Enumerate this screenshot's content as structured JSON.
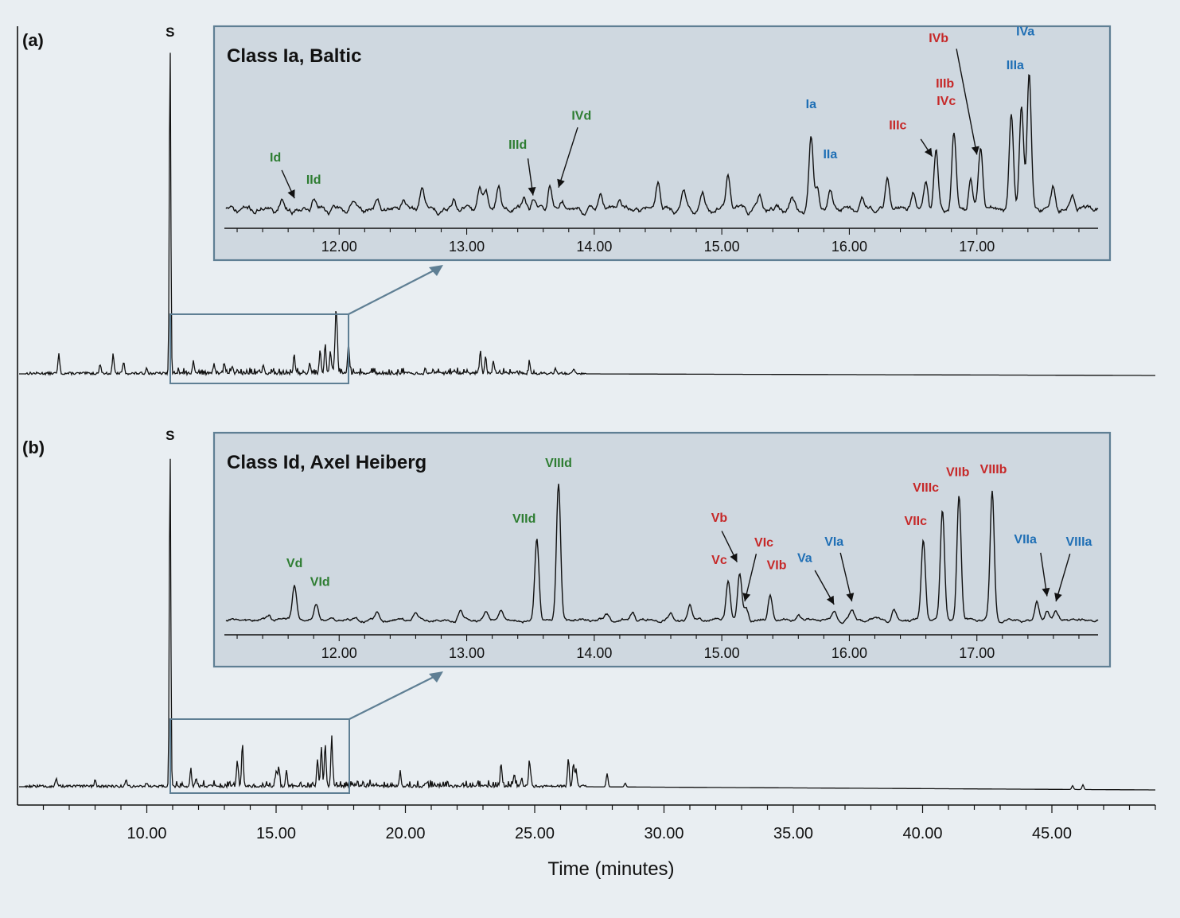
{
  "chart_data": {
    "type": "line",
    "xlabel": "Time (minutes)",
    "xlim": [
      5.0,
      49.0
    ],
    "xticks": [
      "10.00",
      "15.00",
      "20.00",
      "25.00",
      "30.00",
      "35.00",
      "40.00",
      "45.00"
    ],
    "inset_xlim": [
      11.1,
      17.95
    ],
    "inset_xticks": [
      "12.00",
      "13.00",
      "14.00",
      "15.00",
      "16.00",
      "17.00"
    ],
    "colors": {
      "green": "#2e7d32",
      "red": "#c62828",
      "blue": "#1f6fb5",
      "trace": "#111111",
      "inset_bg": "#cfd8e0",
      "inset_border": "#5f7f94"
    },
    "panels": [
      {
        "letter": "(a)",
        "s_label": "S",
        "s_time": 10.9,
        "zoom_range": [
          11.1,
          18.1
        ],
        "inset_title": "Class Ia, Baltic",
        "main_peaks": [
          [
            6.6,
            0.1
          ],
          [
            8.2,
            0.05
          ],
          [
            8.7,
            0.1
          ],
          [
            9.1,
            0.06
          ],
          [
            10.0,
            0.03
          ],
          [
            11.8,
            0.06
          ],
          [
            12.6,
            0.05
          ],
          [
            13.0,
            0.05
          ],
          [
            13.3,
            0.04
          ],
          [
            14.5,
            0.04
          ],
          [
            15.7,
            0.1
          ],
          [
            16.3,
            0.06
          ],
          [
            16.7,
            0.12
          ],
          [
            16.9,
            0.15
          ],
          [
            17.1,
            0.12
          ],
          [
            17.3,
            0.2
          ],
          [
            17.35,
            0.22
          ],
          [
            17.8,
            0.16
          ],
          [
            22.9,
            0.12
          ],
          [
            23.1,
            0.09
          ],
          [
            23.4,
            0.06
          ],
          [
            24.8,
            0.06
          ],
          [
            25.8,
            0.03
          ],
          [
            26.5,
            0.025
          ]
        ],
        "inset_peaks": [
          {
            "t": 11.55,
            "h": 0.09
          },
          {
            "t": 11.8,
            "h": 0.1
          },
          {
            "t": 12.1,
            "h": 0.07
          },
          {
            "t": 12.3,
            "h": 0.08
          },
          {
            "t": 12.5,
            "h": 0.12
          },
          {
            "t": 12.65,
            "h": 0.26
          },
          {
            "t": 12.9,
            "h": 0.12
          },
          {
            "t": 13.1,
            "h": 0.22
          },
          {
            "t": 13.15,
            "h": 0.2
          },
          {
            "t": 13.25,
            "h": 0.25
          },
          {
            "t": 13.45,
            "h": 0.1
          },
          {
            "t": 13.52,
            "h": 0.09
          },
          {
            "t": 13.65,
            "h": 0.24
          },
          {
            "t": 13.75,
            "h": 0.1
          },
          {
            "t": 14.05,
            "h": 0.15
          },
          {
            "t": 14.2,
            "h": 0.09
          },
          {
            "t": 14.5,
            "h": 0.3
          },
          {
            "t": 14.7,
            "h": 0.2
          },
          {
            "t": 14.85,
            "h": 0.14
          },
          {
            "t": 15.05,
            "h": 0.38
          },
          {
            "t": 15.3,
            "h": 0.12
          },
          {
            "t": 15.55,
            "h": 0.1
          },
          {
            "t": 15.7,
            "h": 0.75
          },
          {
            "t": 15.75,
            "h": 0.25
          },
          {
            "t": 15.85,
            "h": 0.2
          },
          {
            "t": 16.1,
            "h": 0.14
          },
          {
            "t": 16.3,
            "h": 0.3
          },
          {
            "t": 16.5,
            "h": 0.2
          },
          {
            "t": 16.6,
            "h": 0.28
          },
          {
            "t": 16.68,
            "h": 0.6
          },
          {
            "t": 16.82,
            "h": 0.78
          },
          {
            "t": 16.95,
            "h": 0.3
          },
          {
            "t": 17.03,
            "h": 0.62
          },
          {
            "t": 17.27,
            "h": 0.95
          },
          {
            "t": 17.35,
            "h": 1.1
          },
          {
            "t": 17.41,
            "h": 1.35
          },
          {
            "t": 17.6,
            "h": 0.22
          },
          {
            "t": 17.75,
            "h": 0.12
          }
        ],
        "labels": [
          {
            "text": "Id",
            "t": 11.5,
            "h": 0.55,
            "color": "green"
          },
          {
            "text": "IId",
            "t": 11.8,
            "h": 0.32,
            "color": "green"
          },
          {
            "text": "IIId",
            "t": 13.4,
            "h": 0.68,
            "color": "green"
          },
          {
            "text": "IVd",
            "t": 13.9,
            "h": 0.98,
            "color": "green"
          },
          {
            "text": "Ia",
            "t": 15.7,
            "h": 1.1,
            "color": "blue"
          },
          {
            "text": "IIa",
            "t": 15.85,
            "h": 0.58,
            "color": "blue"
          },
          {
            "text": "IIIc",
            "t": 16.38,
            "h": 0.88,
            "color": "red"
          },
          {
            "text": "IIIb",
            "t": 16.75,
            "h": 1.31,
            "color": "red"
          },
          {
            "text": "IVc",
            "t": 16.76,
            "h": 1.13,
            "color": "red"
          },
          {
            "text": "IVb",
            "t": 16.7,
            "h": 1.78,
            "color": "red"
          },
          {
            "text": "IIIa",
            "t": 17.3,
            "h": 1.5,
            "color": "blue"
          },
          {
            "text": "IVa",
            "t": 17.38,
            "h": 1.85,
            "color": "blue"
          }
        ],
        "arrows": [
          [
            11.55,
            0.46,
            11.65,
            0.17
          ],
          [
            13.48,
            0.58,
            13.52,
            0.2
          ],
          [
            13.87,
            0.9,
            13.72,
            0.28
          ],
          [
            16.56,
            0.78,
            16.65,
            0.6
          ],
          [
            16.84,
            1.71,
            17.0,
            0.62
          ]
        ]
      },
      {
        "letter": "(b)",
        "s_label": "S",
        "s_time": 10.9,
        "zoom_range": [
          11.1,
          18.2
        ],
        "inset_title": "Class Id, Axel Heiberg",
        "main_peaks": [
          [
            6.5,
            0.04
          ],
          [
            8.0,
            0.03
          ],
          [
            9.2,
            0.03
          ],
          [
            10.0,
            0.02
          ],
          [
            11.7,
            0.08
          ],
          [
            11.9,
            0.04
          ],
          [
            13.5,
            0.14
          ],
          [
            13.7,
            0.22
          ],
          [
            15.0,
            0.08
          ],
          [
            15.1,
            0.1
          ],
          [
            15.4,
            0.07
          ],
          [
            16.6,
            0.14
          ],
          [
            16.75,
            0.2
          ],
          [
            16.9,
            0.22
          ],
          [
            17.15,
            0.24
          ],
          [
            19.8,
            0.07
          ],
          [
            20.8,
            0.02
          ],
          [
            23.7,
            0.12
          ],
          [
            24.2,
            0.06
          ],
          [
            24.5,
            0.04
          ],
          [
            24.8,
            0.13
          ],
          [
            26.3,
            0.15
          ],
          [
            26.5,
            0.12
          ],
          [
            26.6,
            0.09
          ],
          [
            27.8,
            0.07
          ],
          [
            28.5,
            0.02
          ],
          [
            45.8,
            0.02
          ],
          [
            46.2,
            0.025
          ]
        ],
        "inset_peaks": [
          {
            "t": 11.45,
            "h": 0.05
          },
          {
            "t": 11.65,
            "h": 0.34
          },
          {
            "t": 11.82,
            "h": 0.16
          },
          {
            "t": 12.3,
            "h": 0.07
          },
          {
            "t": 12.6,
            "h": 0.06
          },
          {
            "t": 12.95,
            "h": 0.09
          },
          {
            "t": 13.15,
            "h": 0.08
          },
          {
            "t": 13.27,
            "h": 0.1
          },
          {
            "t": 13.55,
            "h": 0.78
          },
          {
            "t": 13.72,
            "h": 1.32
          },
          {
            "t": 14.1,
            "h": 0.05
          },
          {
            "t": 14.3,
            "h": 0.08
          },
          {
            "t": 14.6,
            "h": 0.06
          },
          {
            "t": 14.75,
            "h": 0.13
          },
          {
            "t": 15.05,
            "h": 0.38
          },
          {
            "t": 15.14,
            "h": 0.45
          },
          {
            "t": 15.19,
            "h": 0.12
          },
          {
            "t": 15.38,
            "h": 0.26
          },
          {
            "t": 15.6,
            "h": 0.06
          },
          {
            "t": 15.88,
            "h": 0.08
          },
          {
            "t": 16.02,
            "h": 0.1
          },
          {
            "t": 16.35,
            "h": 0.1
          },
          {
            "t": 16.58,
            "h": 0.78
          },
          {
            "t": 16.73,
            "h": 1.06
          },
          {
            "t": 16.86,
            "h": 1.22
          },
          {
            "t": 17.12,
            "h": 1.24
          },
          {
            "t": 17.47,
            "h": 0.17
          },
          {
            "t": 17.55,
            "h": 0.1
          },
          {
            "t": 17.62,
            "h": 0.08
          }
        ],
        "labels": [
          {
            "text": "Vd",
            "t": 11.65,
            "h": 0.53,
            "color": "green"
          },
          {
            "text": "VId",
            "t": 11.85,
            "h": 0.35,
            "color": "green"
          },
          {
            "text": "VIId",
            "t": 13.45,
            "h": 0.96,
            "color": "green"
          },
          {
            "text": "VIIId",
            "t": 13.72,
            "h": 1.5,
            "color": "green"
          },
          {
            "text": "Vb",
            "t": 14.98,
            "h": 0.97,
            "color": "red"
          },
          {
            "text": "Vc",
            "t": 14.98,
            "h": 0.56,
            "color": "red"
          },
          {
            "text": "VIc",
            "t": 15.33,
            "h": 0.73,
            "color": "red"
          },
          {
            "text": "VIb",
            "t": 15.43,
            "h": 0.51,
            "color": "red"
          },
          {
            "text": "Va",
            "t": 15.65,
            "h": 0.58,
            "color": "blue"
          },
          {
            "text": "VIa",
            "t": 15.88,
            "h": 0.74,
            "color": "blue"
          },
          {
            "text": "VIIc",
            "t": 16.52,
            "h": 0.94,
            "color": "red"
          },
          {
            "text": "VIIIc",
            "t": 16.6,
            "h": 1.26,
            "color": "red"
          },
          {
            "text": "VIIb",
            "t": 16.85,
            "h": 1.41,
            "color": "red"
          },
          {
            "text": "VIIIb",
            "t": 17.13,
            "h": 1.44,
            "color": "red"
          },
          {
            "text": "VIIa",
            "t": 17.38,
            "h": 0.76,
            "color": "blue"
          },
          {
            "text": "VIIIa",
            "t": 17.8,
            "h": 0.74,
            "color": "blue"
          }
        ],
        "arrows": [
          [
            15.0,
            0.88,
            15.12,
            0.58
          ],
          [
            15.27,
            0.66,
            15.18,
            0.2
          ],
          [
            15.73,
            0.5,
            15.88,
            0.17
          ],
          [
            15.93,
            0.67,
            16.02,
            0.2
          ],
          [
            17.5,
            0.67,
            17.55,
            0.25
          ],
          [
            17.73,
            0.66,
            17.62,
            0.2
          ]
        ]
      }
    ]
  }
}
